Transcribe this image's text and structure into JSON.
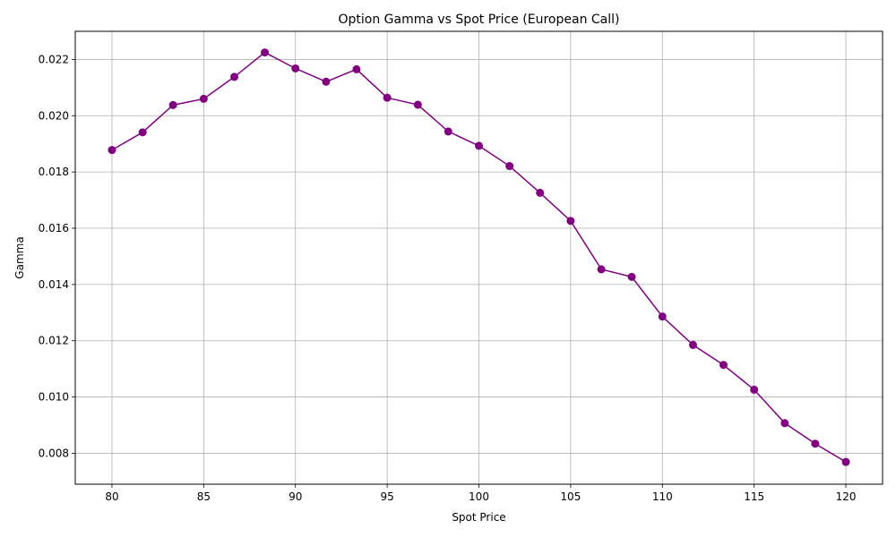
{
  "chart_data": {
    "type": "line",
    "title": "Option Gamma vs Spot Price (European Call)",
    "xlabel": "Spot Price",
    "ylabel": "Gamma",
    "xlim": [
      78,
      122
    ],
    "ylim": [
      0.0069,
      0.023
    ],
    "x_ticks": [
      80,
      85,
      90,
      95,
      100,
      105,
      110,
      115,
      120
    ],
    "y_ticks": [
      0.008,
      0.01,
      0.012,
      0.014,
      0.016,
      0.018,
      0.02,
      0.022
    ],
    "x_tick_labels": [
      "80",
      "85",
      "90",
      "95",
      "100",
      "105",
      "110",
      "115",
      "120"
    ],
    "y_tick_labels": [
      "0.008",
      "0.010",
      "0.012",
      "0.014",
      "0.016",
      "0.018",
      "0.020",
      "0.022"
    ],
    "grid": true,
    "series": [
      {
        "color": "#800080",
        "marker": "circle",
        "x": [
          80.0,
          81.67,
          83.33,
          85.0,
          86.67,
          88.33,
          90.0,
          91.67,
          93.33,
          95.0,
          96.67,
          98.33,
          100.0,
          101.67,
          103.33,
          105.0,
          106.67,
          108.33,
          110.0,
          111.67,
          113.33,
          115.0,
          116.67,
          118.33,
          120.0
        ],
        "y": [
          0.01878,
          0.01941,
          0.02038,
          0.0206,
          0.02138,
          0.02225,
          0.02168,
          0.02121,
          0.02165,
          0.02064,
          0.02039,
          0.01944,
          0.01893,
          0.01821,
          0.01726,
          0.01626,
          0.01454,
          0.01427,
          0.01286,
          0.01185,
          0.01114,
          0.01026,
          0.00907,
          0.00834,
          0.00769
        ]
      }
    ]
  }
}
